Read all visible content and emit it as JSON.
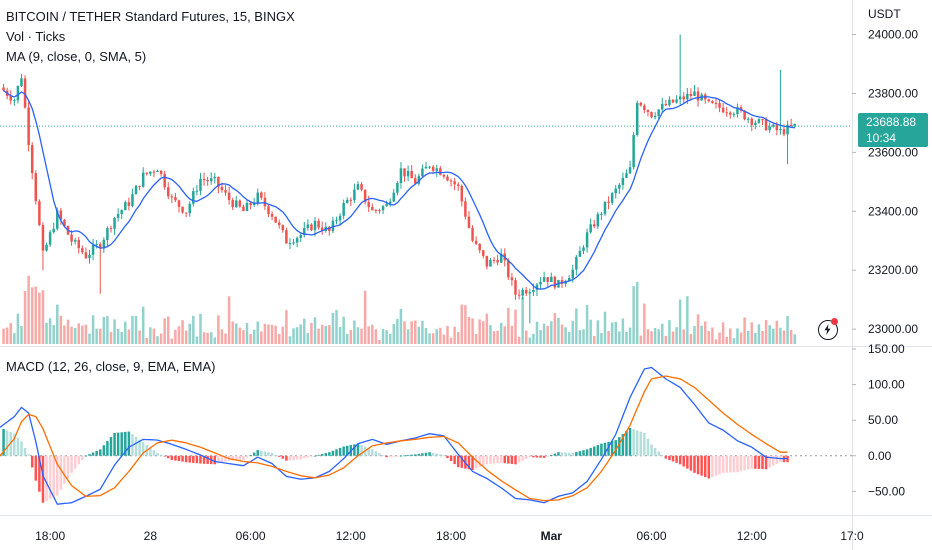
{
  "header": {
    "title": "BITCOIN / TETHER Standard Futures, 15, BINGX",
    "volume_label": "Vol · Ticks",
    "ma_label": "MA (9, close, 0, SMA, 5)",
    "macd_label": "MACD (12, 26, close, 9, EMA, EMA)"
  },
  "price_axis": {
    "currency": "USDT",
    "last_price": "23688.88",
    "countdown": "10:34"
  },
  "colors": {
    "up": "#26a69a",
    "down": "#ef5350",
    "ma": "#2962ff",
    "macd": "#2962ff",
    "signal": "#ff6d00",
    "price_line": "#26a69a"
  },
  "icons": {
    "alert": "lightning-icon"
  },
  "chart_data": [
    {
      "type": "candlestick",
      "title": "BITCOIN / TETHER Standard Futures, 15, BINGX",
      "ylim": [
        22970,
        24090
      ],
      "yticks": [
        "24000.00",
        "23800.00",
        "23600.00",
        "23400.00",
        "23200.00",
        "23000.00"
      ],
      "ytick_values": [
        24000,
        23800,
        23600,
        23400,
        23200,
        23000
      ],
      "xticks": [
        "18:00",
        "28",
        "06:00",
        "12:00",
        "18:00",
        "Mar",
        "06:00",
        "12:00",
        "17:0"
      ],
      "xtick_values": [
        10,
        38,
        66,
        94,
        122,
        150,
        178,
        206,
        234
      ],
      "x_range": [
        -4,
        234
      ],
      "last_price": 23688.88,
      "ma_period": 9,
      "close_anchors": [
        [
          -4,
          23820
        ],
        [
          0,
          23780
        ],
        [
          2,
          23860
        ],
        [
          4,
          23640
        ],
        [
          8,
          23250
        ],
        [
          12,
          23390
        ],
        [
          16,
          23300
        ],
        [
          20,
          23250
        ],
        [
          24,
          23290
        ],
        [
          28,
          23380
        ],
        [
          32,
          23430
        ],
        [
          36,
          23520
        ],
        [
          40,
          23550
        ],
        [
          44,
          23440
        ],
        [
          48,
          23400
        ],
        [
          52,
          23510
        ],
        [
          56,
          23500
        ],
        [
          60,
          23440
        ],
        [
          64,
          23400
        ],
        [
          68,
          23450
        ],
        [
          72,
          23390
        ],
        [
          76,
          23300
        ],
        [
          80,
          23320
        ],
        [
          84,
          23360
        ],
        [
          88,
          23330
        ],
        [
          92,
          23420
        ],
        [
          96,
          23480
        ],
        [
          100,
          23400
        ],
        [
          104,
          23420
        ],
        [
          108,
          23540
        ],
        [
          112,
          23500
        ],
        [
          116,
          23560
        ],
        [
          120,
          23530
        ],
        [
          124,
          23480
        ],
        [
          128,
          23300
        ],
        [
          132,
          23220
        ],
        [
          136,
          23250
        ],
        [
          140,
          23120
        ],
        [
          144,
          23140
        ],
        [
          148,
          23180
        ],
        [
          152,
          23150
        ],
        [
          156,
          23200
        ],
        [
          160,
          23320
        ],
        [
          164,
          23400
        ],
        [
          168,
          23470
        ],
        [
          172,
          23540
        ],
        [
          174,
          23780
        ],
        [
          178,
          23730
        ],
        [
          182,
          23760
        ],
        [
          186,
          23780
        ],
        [
          190,
          23800
        ],
        [
          194,
          23760
        ],
        [
          198,
          23750
        ],
        [
          202,
          23740
        ],
        [
          206,
          23710
        ],
        [
          210,
          23690
        ],
        [
          214,
          23670
        ],
        [
          218,
          23688
        ]
      ],
      "volume": {
        "label": "Vol · Ticks"
      }
    },
    {
      "type": "macd",
      "title": "MACD (12, 26, close, 9, EMA, EMA)",
      "ylim": [
        -72,
        150
      ],
      "yticks": [
        "150.00",
        "100.00",
        "50.00",
        "0.00",
        "−50.00"
      ],
      "ytick_values": [
        150,
        100,
        50,
        0,
        -50
      ],
      "series": [
        {
          "name": "MACD"
        },
        {
          "name": "Signal"
        },
        {
          "name": "Histogram"
        }
      ],
      "macd_anchors": [
        [
          -4,
          40
        ],
        [
          0,
          55
        ],
        [
          2,
          68
        ],
        [
          4,
          60
        ],
        [
          6,
          20
        ],
        [
          8,
          -28
        ],
        [
          12,
          -68
        ],
        [
          16,
          -66
        ],
        [
          20,
          -57
        ],
        [
          24,
          -47
        ],
        [
          28,
          -13
        ],
        [
          32,
          12
        ],
        [
          36,
          23
        ],
        [
          40,
          22
        ],
        [
          44,
          16
        ],
        [
          48,
          9
        ],
        [
          52,
          1
        ],
        [
          56,
          -8
        ],
        [
          60,
          -11
        ],
        [
          64,
          -14
        ],
        [
          68,
          -2
        ],
        [
          72,
          -11
        ],
        [
          76,
          -29
        ],
        [
          80,
          -33
        ],
        [
          84,
          -31
        ],
        [
          88,
          -22
        ],
        [
          92,
          -4
        ],
        [
          96,
          17
        ],
        [
          100,
          23
        ],
        [
          104,
          16
        ],
        [
          108,
          21
        ],
        [
          112,
          25
        ],
        [
          116,
          31
        ],
        [
          120,
          28
        ],
        [
          124,
          2
        ],
        [
          128,
          -22
        ],
        [
          132,
          -32
        ],
        [
          136,
          -45
        ],
        [
          140,
          -60
        ],
        [
          144,
          -62
        ],
        [
          148,
          -66
        ],
        [
          152,
          -57
        ],
        [
          156,
          -52
        ],
        [
          160,
          -36
        ],
        [
          164,
          -5
        ],
        [
          168,
          30
        ],
        [
          172,
          82
        ],
        [
          176,
          122
        ],
        [
          178,
          124
        ],
        [
          182,
          108
        ],
        [
          186,
          96
        ],
        [
          190,
          72
        ],
        [
          194,
          46
        ],
        [
          198,
          36
        ],
        [
          202,
          21
        ],
        [
          206,
          12
        ],
        [
          210,
          -2
        ],
        [
          214,
          -4
        ]
      ],
      "signal_anchors": [
        [
          -4,
          0
        ],
        [
          0,
          24
        ],
        [
          2,
          48
        ],
        [
          4,
          58
        ],
        [
          6,
          55
        ],
        [
          8,
          38
        ],
        [
          12,
          -12
        ],
        [
          16,
          -42
        ],
        [
          20,
          -57
        ],
        [
          24,
          -56
        ],
        [
          28,
          -45
        ],
        [
          32,
          -22
        ],
        [
          36,
          4
        ],
        [
          40,
          18
        ],
        [
          44,
          22
        ],
        [
          48,
          18
        ],
        [
          52,
          12
        ],
        [
          56,
          4
        ],
        [
          60,
          -4
        ],
        [
          64,
          -8
        ],
        [
          68,
          -10
        ],
        [
          72,
          -15
        ],
        [
          76,
          -22
        ],
        [
          80,
          -28
        ],
        [
          84,
          -31
        ],
        [
          88,
          -27
        ],
        [
          92,
          -17
        ],
        [
          96,
          0
        ],
        [
          100,
          14
        ],
        [
          104,
          18
        ],
        [
          108,
          21
        ],
        [
          112,
          23
        ],
        [
          116,
          26
        ],
        [
          120,
          27
        ],
        [
          124,
          18
        ],
        [
          128,
          -2
        ],
        [
          132,
          -20
        ],
        [
          136,
          -35
        ],
        [
          140,
          -48
        ],
        [
          144,
          -60
        ],
        [
          148,
          -63
        ],
        [
          152,
          -62
        ],
        [
          156,
          -56
        ],
        [
          160,
          -45
        ],
        [
          164,
          -22
        ],
        [
          168,
          8
        ],
        [
          172,
          43
        ],
        [
          176,
          90
        ],
        [
          178,
          108
        ],
        [
          182,
          112
        ],
        [
          186,
          108
        ],
        [
          190,
          96
        ],
        [
          194,
          78
        ],
        [
          198,
          60
        ],
        [
          202,
          44
        ],
        [
          206,
          30
        ],
        [
          210,
          17
        ],
        [
          214,
          5
        ]
      ]
    }
  ]
}
